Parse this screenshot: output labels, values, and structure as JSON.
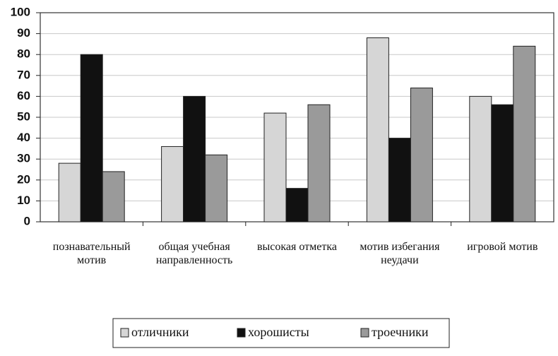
{
  "chart_data": {
    "type": "bar",
    "categories": [
      "познавательный мотив",
      "общая учебная направленность",
      "высокая отметка",
      "мотив избегания неудачи",
      "игровой мотив"
    ],
    "series": [
      {
        "name": "отличники",
        "color": "#d6d6d6",
        "values": [
          28,
          36,
          52,
          88,
          60
        ]
      },
      {
        "name": "хорошисты",
        "color": "#111111",
        "values": [
          80,
          60,
          16,
          40,
          56
        ]
      },
      {
        "name": "троечники",
        "color": "#9a9a9a",
        "values": [
          24,
          32,
          56,
          64,
          84
        ]
      }
    ],
    "ylim": [
      0,
      100
    ],
    "yticks": [
      0,
      10,
      20,
      30,
      40,
      50,
      60,
      70,
      80,
      90,
      100
    ],
    "grid": true,
    "legend": "bottom"
  }
}
